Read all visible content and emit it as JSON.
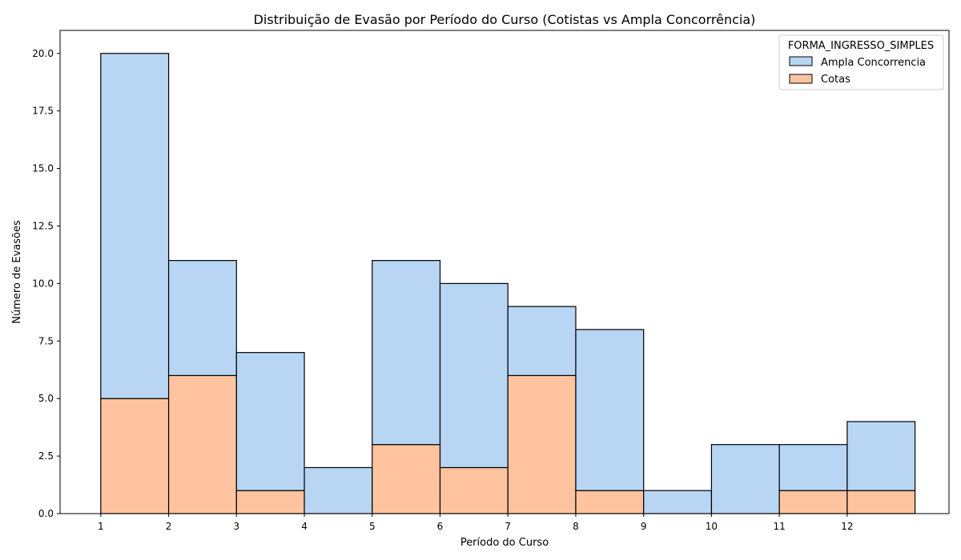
{
  "chart_data": {
    "type": "bar",
    "stacked": true,
    "title": "Distribuição de Evasão por Período do Curso (Cotistas vs Ampla Concorrência)",
    "xlabel": "Período do Curso",
    "ylabel": "Número de Evasões",
    "bin_edges": [
      1,
      2,
      3,
      4,
      5,
      6,
      7,
      8,
      9,
      10,
      11,
      12,
      13
    ],
    "x_ticks": [
      "1",
      "2",
      "3",
      "4",
      "5",
      "6",
      "7",
      "8",
      "9",
      "10",
      "11",
      "12"
    ],
    "xlim": [
      0.4,
      13.5
    ],
    "ylim": [
      0,
      21
    ],
    "y_ticks": [
      "0.0",
      "2.5",
      "5.0",
      "7.5",
      "10.0",
      "12.5",
      "15.0",
      "17.5",
      "20.0"
    ],
    "series": [
      {
        "name": "Cotas",
        "values": [
          5,
          6,
          1,
          0,
          3,
          2,
          6,
          1,
          0,
          0,
          1,
          1
        ],
        "color": "#ffc49f"
      },
      {
        "name": "Ampla Concorrencia",
        "values": [
          15,
          5,
          6,
          2,
          8,
          8,
          3,
          7,
          1,
          3,
          2,
          3
        ],
        "color": "#b8d6f4"
      }
    ],
    "legend": {
      "title": "FORMA_INGRESSO_SIMPLES",
      "position": "top-right",
      "entries": [
        {
          "label": "Ampla Concorrencia",
          "color": "#b8d6f4"
        },
        {
          "label": "Cotas",
          "color": "#ffc49f"
        }
      ]
    },
    "grid": false
  }
}
